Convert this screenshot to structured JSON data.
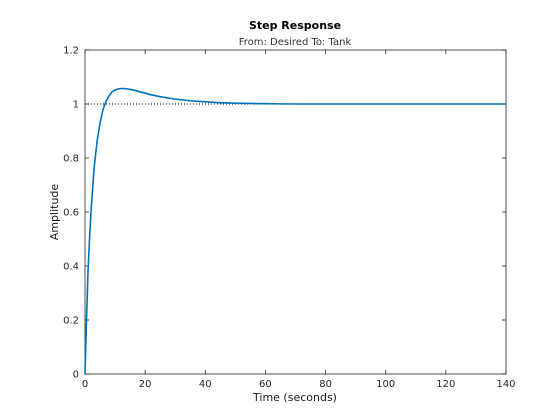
{
  "chart_data": {
    "type": "line",
    "title": "Step Response",
    "subtitle": "From: Desired  To: Tank",
    "xlabel": "Time (seconds)",
    "ylabel": "Amplitude",
    "xlim": [
      0,
      140
    ],
    "ylim": [
      0,
      1.2
    ],
    "xticks": [
      0,
      20,
      40,
      60,
      80,
      100,
      120,
      140
    ],
    "yticks": [
      0,
      0.2,
      0.4,
      0.6,
      0.8,
      1,
      1.2
    ],
    "xtick_labels": [
      "0",
      "20",
      "40",
      "60",
      "80",
      "100",
      "120",
      "140"
    ],
    "ytick_labels": [
      "0",
      "0.2",
      "0.4",
      "0.6",
      "0.8",
      "1",
      "1.2"
    ],
    "grid": false,
    "steady_state_value": 1,
    "steady_state_line_end": 69,
    "series": [
      {
        "x": [
          0,
          0.5,
          1,
          1.5,
          2,
          3,
          4,
          5,
          6,
          7,
          8,
          9,
          10,
          11,
          12,
          13,
          14,
          16,
          18,
          20,
          22,
          25,
          30,
          35,
          40,
          45,
          50,
          55,
          60,
          65,
          70,
          80,
          90,
          100,
          110,
          120,
          130,
          140
        ],
        "y": [
          0,
          0.2,
          0.38,
          0.5,
          0.6,
          0.76,
          0.86,
          0.93,
          0.98,
          1.01,
          1.03,
          1.045,
          1.052,
          1.056,
          1.057,
          1.057,
          1.056,
          1.052,
          1.046,
          1.04,
          1.034,
          1.027,
          1.018,
          1.012,
          1.008,
          1.005,
          1.003,
          1.002,
          1.001,
          1.0005,
          1.0,
          1.0,
          1.0,
          1.0,
          1.0,
          1.0,
          1.0,
          1.0
        ]
      }
    ],
    "colors": {
      "series": "#0072bd",
      "axes": "#262626",
      "reference": "#000000"
    }
  }
}
